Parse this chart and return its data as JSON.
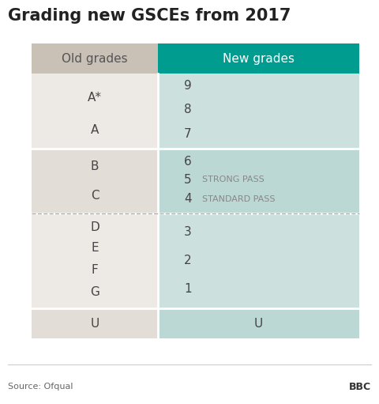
{
  "title": "Grading new GSCEs from 2017",
  "col_header_old": "Old grades",
  "col_header_new": "New grades",
  "header_old_bg": "#c9c0b6",
  "header_new_bg": "#009c8f",
  "header_text_old_color": "#555555",
  "header_text_new_color": "#ffffff",
  "footer_text": "Source: Ofqual",
  "bbc_text": "BBC",
  "rows": [
    {
      "old": [
        "A*",
        "A"
      ],
      "new": [
        "9",
        "8",
        "7"
      ],
      "old_bg": "#edeae5",
      "new_bg": "#cce0dd",
      "section": "top"
    },
    {
      "old": [
        "B",
        "C"
      ],
      "new": [
        "6",
        "5",
        "4"
      ],
      "annotations": [
        "",
        "STRONG PASS",
        "STANDARD PASS"
      ],
      "old_bg": "#e3ddd7",
      "new_bg": "#bcd8d4",
      "section": "middle",
      "dashed_bottom": true
    },
    {
      "old": [
        "D",
        "E",
        "F",
        "G"
      ],
      "new": [
        "3",
        "2",
        "1"
      ],
      "old_bg": "#edeae5",
      "new_bg": "#cce0dd",
      "section": "lower"
    },
    {
      "old": [
        "U"
      ],
      "new": [
        "U"
      ],
      "old_bg": "#e3ddd7",
      "new_bg": "#bcd8d4",
      "section": "u"
    }
  ],
  "bg_color": "#ffffff",
  "title_fontsize": 15,
  "header_fontsize": 11,
  "cell_fontsize": 11,
  "annotation_fontsize": 8
}
